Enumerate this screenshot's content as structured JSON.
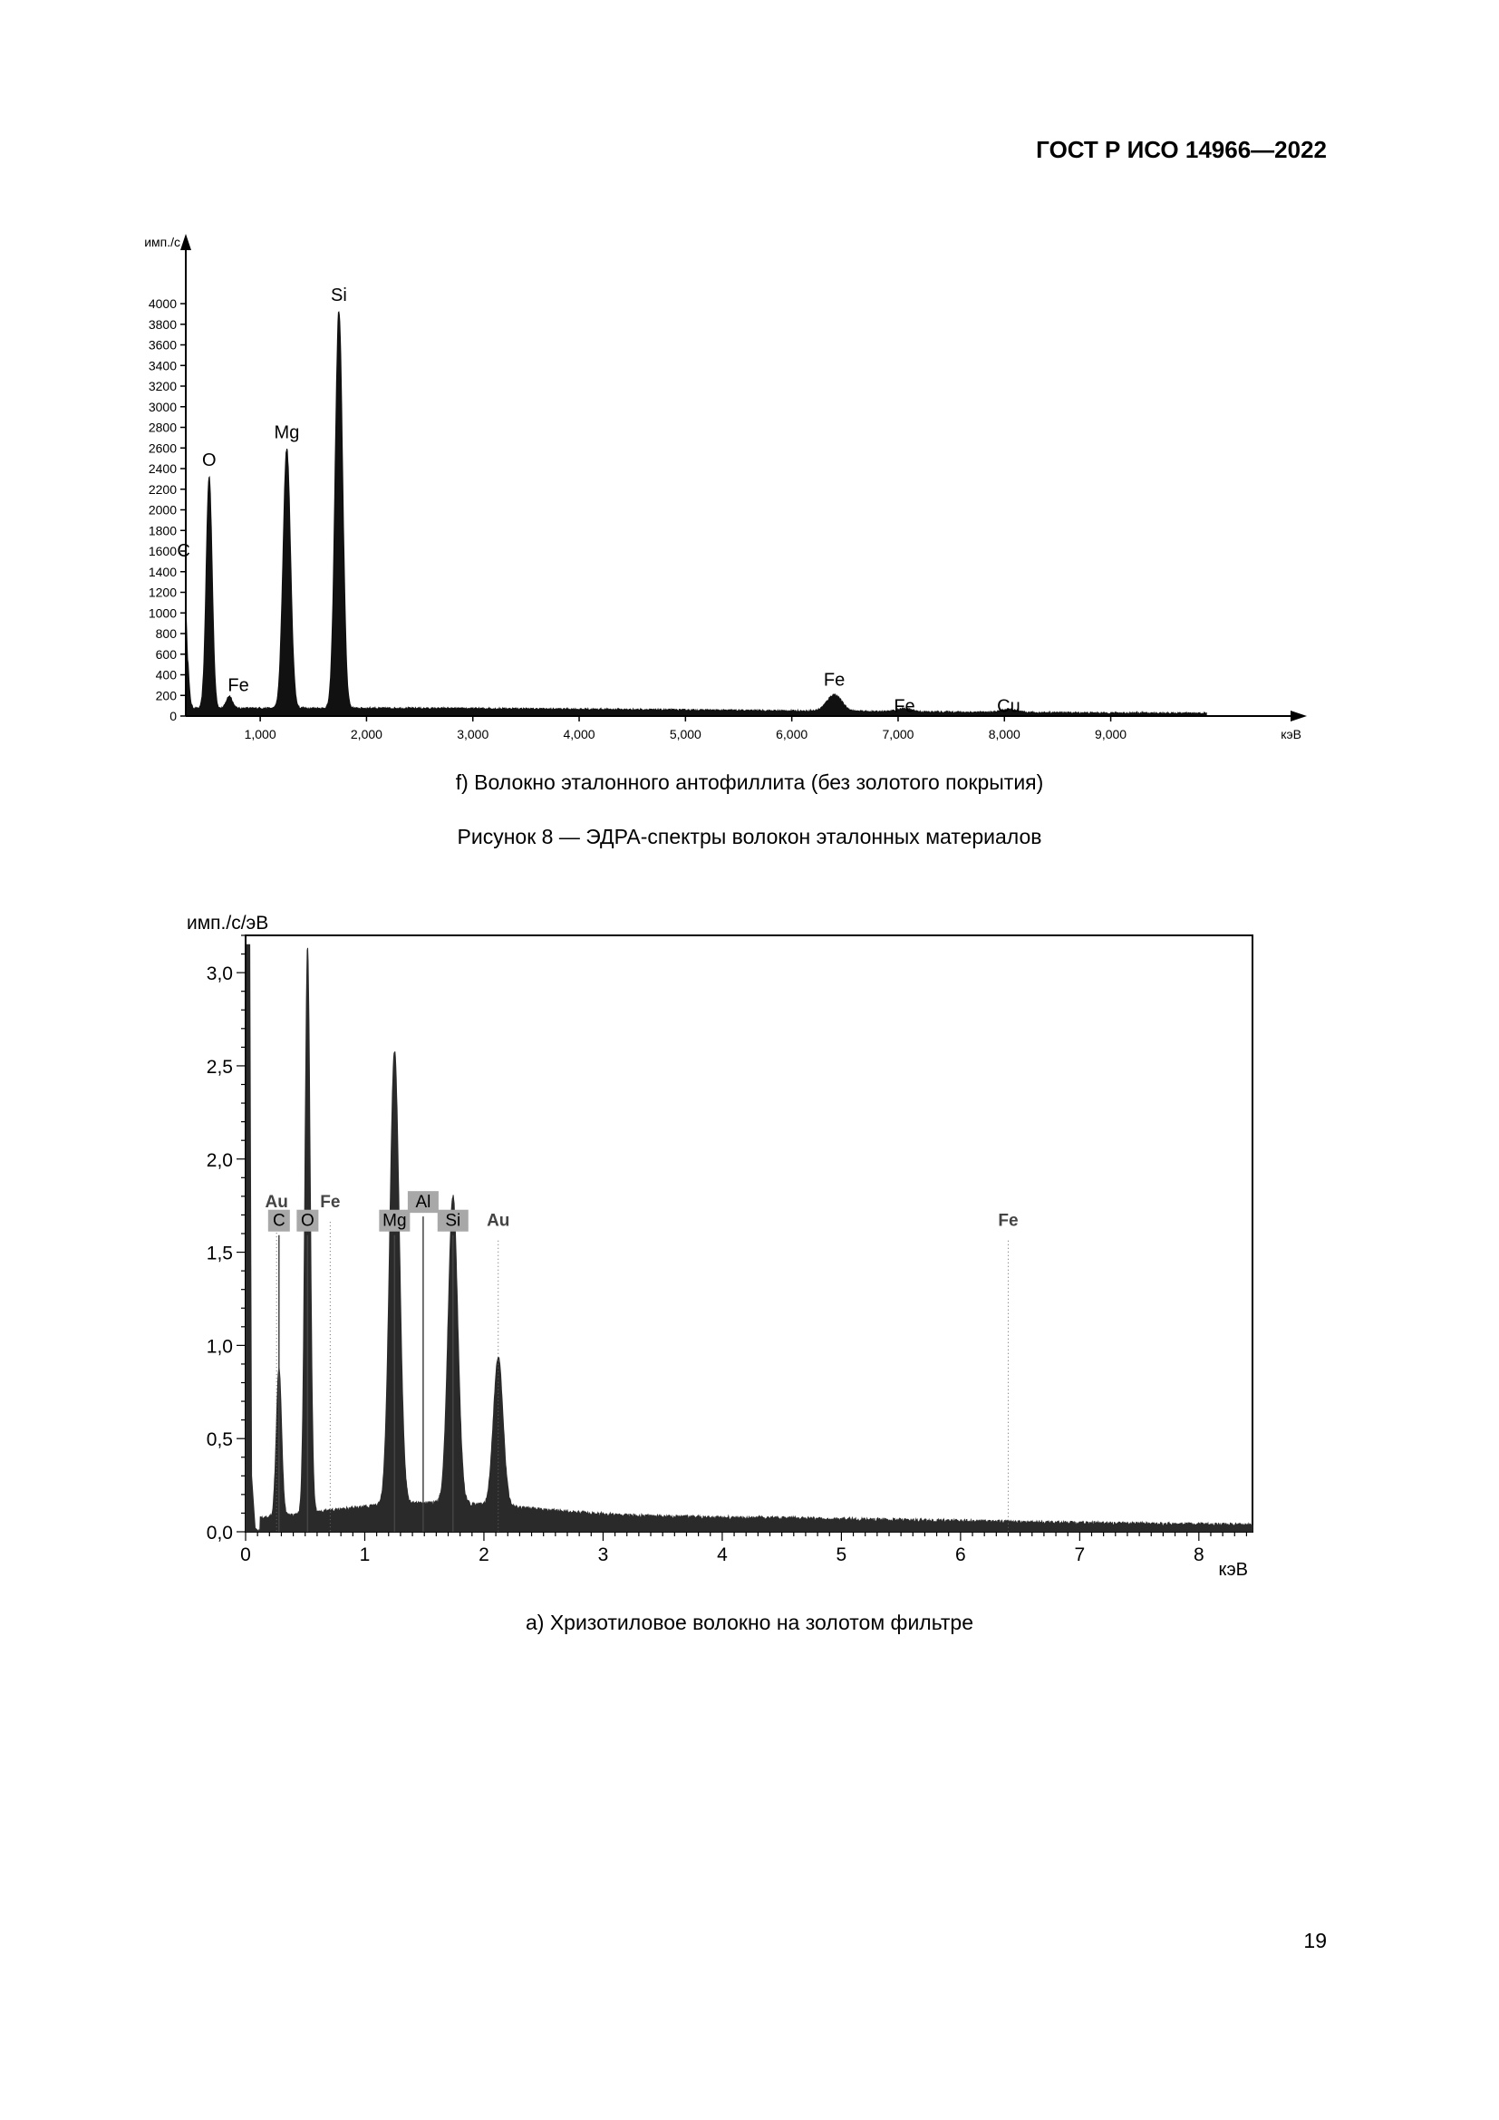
{
  "document": {
    "header": "ГОСТ Р ИСО 14966—2022",
    "page_number": "19",
    "caption_f": "f)  Волокно эталонного антофиллита (без золотого покрытия)",
    "figure_title": "Рисунок 8 — ЭДРА-спектры волокон эталонных материалов",
    "caption_a": "а)  Хризотиловое волокно на золотом фильтре"
  },
  "chart_data": [
    {
      "type": "line",
      "ylabel": "имп./с",
      "xlabel": "кэВ",
      "xlim": [
        0.3,
        10.7
      ],
      "ylim": [
        0,
        4000
      ],
      "y_ticks": [
        0,
        200,
        400,
        600,
        800,
        1000,
        1200,
        1400,
        1600,
        1800,
        2000,
        2200,
        2400,
        2600,
        2800,
        3000,
        3200,
        3400,
        3600,
        3800,
        4000
      ],
      "y_tick_labels": [
        "0",
        "200",
        "400",
        "600",
        "800",
        "1000",
        "1200",
        "1400",
        "1600",
        "1800",
        "2000",
        "2200",
        "2400",
        "2600",
        "2800",
        "3000",
        "3200",
        "3400",
        "3600",
        "3800",
        "4000"
      ],
      "x_ticks": [
        1,
        2,
        3,
        4,
        5,
        6,
        7,
        8,
        9
      ],
      "x_tick_labels": [
        "1,000",
        "2,000",
        "3,000",
        "4,000",
        "5,000",
        "6,000",
        "7,000",
        "8,000",
        "9,000"
      ],
      "peaks": [
        {
          "element": "C",
          "energy": 0.28,
          "counts": 1370
        },
        {
          "element": "O",
          "energy": 0.52,
          "counts": 2250
        },
        {
          "element": "Fe",
          "energy": 0.71,
          "counts": 120
        },
        {
          "element": "Mg",
          "energy": 1.25,
          "counts": 2520
        },
        {
          "element": "Si",
          "energy": 1.74,
          "counts": 3850
        },
        {
          "element": "Fe",
          "energy": 6.4,
          "counts": 160
        },
        {
          "element": "Fe",
          "energy": 7.06,
          "counts": 30
        },
        {
          "element": "Cu",
          "energy": 8.04,
          "counts": 30
        }
      ],
      "grid": false,
      "fill_color": "#111111"
    },
    {
      "type": "line",
      "ylabel": "имп./с/эВ",
      "xlabel": "кэВ",
      "xlim": [
        0,
        8.45
      ],
      "ylim": [
        0,
        3.2
      ],
      "y_ticks": [
        0,
        0.5,
        1.0,
        1.5,
        2.0,
        2.5,
        3.0
      ],
      "y_tick_labels": [
        "0,0",
        "0,5",
        "1,0",
        "1,5",
        "2,0",
        "2,5",
        "3,0"
      ],
      "x_ticks": [
        0,
        1,
        2,
        3,
        4,
        5,
        6,
        7,
        8
      ],
      "x_tick_labels": [
        "0",
        "1",
        "2",
        "3",
        "4",
        "5",
        "6",
        "7",
        "8"
      ],
      "peaks": [
        {
          "element": "C",
          "energy": 0.28,
          "counts": 0.8
        },
        {
          "element": "O",
          "energy": 0.52,
          "counts": 3.03
        },
        {
          "element": "Mg",
          "energy": 1.25,
          "counts": 2.43
        },
        {
          "element": "Si",
          "energy": 1.74,
          "counts": 1.65
        },
        {
          "element": "Au",
          "energy": 2.12,
          "counts": 0.8
        }
      ],
      "element_markers": [
        {
          "label": "Au",
          "energy": 0.26,
          "level": 1.75,
          "boxed": false
        },
        {
          "label": "C",
          "energy": 0.28,
          "level": 1.65,
          "boxed": true
        },
        {
          "label": "O",
          "energy": 0.52,
          "level": 1.65,
          "boxed": true
        },
        {
          "label": "Fe",
          "energy": 0.71,
          "level": 1.75,
          "boxed": false
        },
        {
          "label": "Al",
          "energy": 1.49,
          "level": 1.75,
          "boxed": true
        },
        {
          "label": "Mg",
          "energy": 1.25,
          "level": 1.65,
          "boxed": true
        },
        {
          "label": "Si",
          "energy": 1.74,
          "level": 1.65,
          "boxed": true
        },
        {
          "label": "Au",
          "energy": 2.12,
          "level": 1.65,
          "boxed": false
        },
        {
          "label": "Fe",
          "energy": 6.4,
          "level": 1.65,
          "boxed": false
        }
      ],
      "grid": false,
      "fill_color": "#2a2a2a"
    }
  ]
}
